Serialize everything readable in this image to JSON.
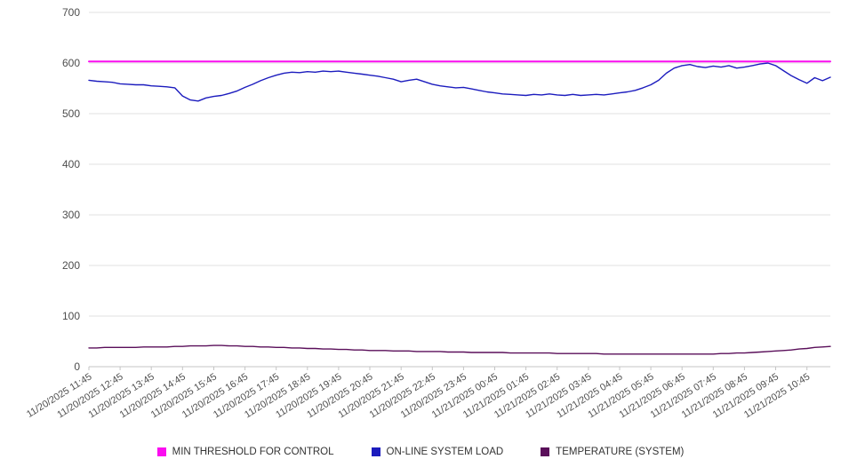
{
  "chart_data": {
    "type": "line",
    "title": "",
    "xlabel": "",
    "ylabel": "",
    "ylim": [
      0,
      700
    ],
    "ytick_step": 100,
    "y_tick_labels": [
      "0",
      "100",
      "200",
      "300",
      "400",
      "500",
      "600",
      "700"
    ],
    "grid": "horizontal",
    "legend_position": "bottom",
    "samples_per_label": 4,
    "x_labels": [
      "11/20/2025 11:45",
      "11/20/2025 12:45",
      "11/20/2025 13:45",
      "11/20/2025 14:45",
      "11/20/2025 15:45",
      "11/20/2025 16:45",
      "11/20/2025 17:45",
      "11/20/2025 18:45",
      "11/20/2025 19:45",
      "11/20/2025 20:45",
      "11/20/2025 21:45",
      "11/20/2025 22:45",
      "11/20/2025 23:45",
      "11/21/2025 00:45",
      "11/21/2025 01:45",
      "11/21/2025 02:45",
      "11/21/2025 03:45",
      "11/21/2025 04:45",
      "11/21/2025 05:45",
      "11/21/2025 06:45",
      "11/21/2025 07:45",
      "11/21/2025 08:45",
      "11/21/2025 09:45",
      "11/21/2025 10:45"
    ],
    "series": [
      {
        "name": "MIN THRESHOLD FOR CONTROL",
        "color": "#fb0df0",
        "line_width": 2,
        "values": [
          603,
          603
        ]
      },
      {
        "name": "ON-LINE SYSTEM LOAD",
        "color": "#1c1cbe",
        "line_width": 1.4,
        "values": [
          566,
          564,
          563,
          562,
          559,
          558,
          557,
          557,
          555,
          554,
          553,
          551,
          535,
          527,
          525,
          531,
          534,
          536,
          540,
          545,
          552,
          558,
          565,
          571,
          576,
          580,
          582,
          581,
          583,
          582,
          584,
          583,
          584,
          582,
          580,
          578,
          576,
          574,
          571,
          568,
          563,
          566,
          568,
          563,
          558,
          555,
          553,
          551,
          552,
          549,
          546,
          543,
          541,
          539,
          538,
          537,
          536,
          538,
          537,
          539,
          537,
          536,
          538,
          536,
          537,
          538,
          537,
          539,
          541,
          543,
          546,
          551,
          557,
          566,
          580,
          590,
          595,
          597,
          593,
          591,
          594,
          592,
          595,
          590,
          592,
          595,
          598,
          600,
          595,
          585,
          575,
          567,
          560,
          571,
          565,
          572
        ]
      },
      {
        "name": "TEMPERATURE (SYSTEM)",
        "color": "#5a0f5a",
        "line_width": 1.4,
        "values": [
          37,
          37,
          38,
          38,
          38,
          38,
          38,
          39,
          39,
          39,
          39,
          40,
          40,
          41,
          41,
          41,
          42,
          42,
          41,
          41,
          40,
          40,
          39,
          39,
          38,
          38,
          37,
          37,
          36,
          36,
          35,
          35,
          34,
          34,
          33,
          33,
          32,
          32,
          32,
          31,
          31,
          31,
          30,
          30,
          30,
          30,
          29,
          29,
          29,
          28,
          28,
          28,
          28,
          28,
          27,
          27,
          27,
          27,
          27,
          27,
          26,
          26,
          26,
          26,
          26,
          26,
          25,
          25,
          25,
          25,
          25,
          25,
          25,
          25,
          25,
          25,
          25,
          25,
          25,
          25,
          25,
          26,
          26,
          27,
          27,
          28,
          29,
          30,
          31,
          32,
          33,
          35,
          36,
          38,
          39,
          40
        ]
      }
    ],
    "style": {
      "grid_color": "#e2e2e2",
      "axis_line_color": "#c4c4c4",
      "tick_color": "#c4c4c4",
      "axis_label_color": "#4d4d4d"
    }
  }
}
